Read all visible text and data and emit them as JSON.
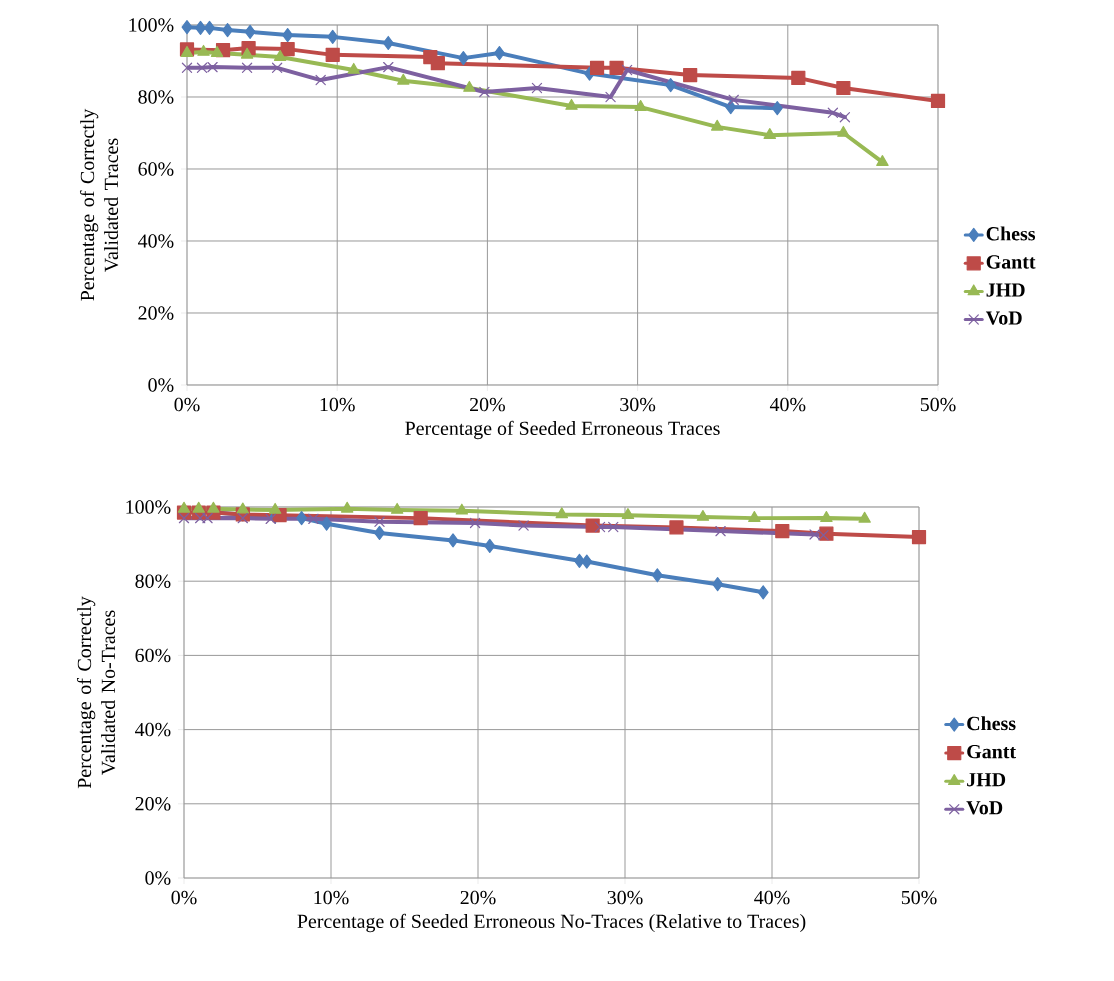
{
  "chart_data": [
    {
      "type": "line",
      "xlabel": "Percentage of Seeded Erroneous Traces",
      "ylabel": "Percentage of Correctly Validated Traces",
      "xlim": [
        0,
        50
      ],
      "ylim": [
        0,
        100
      ],
      "xticks": [
        {
          "value": 0,
          "label": "0%"
        },
        {
          "value": 10,
          "label": "10%"
        },
        {
          "value": 20,
          "label": "20%"
        },
        {
          "value": 30,
          "label": "30%"
        },
        {
          "value": 40,
          "label": "40%"
        },
        {
          "value": 50,
          "label": "50%"
        }
      ],
      "yticks": [
        {
          "value": 0,
          "label": "0%"
        },
        {
          "value": 20,
          "label": "20%"
        },
        {
          "value": 40,
          "label": "40%"
        },
        {
          "value": 60,
          "label": "60%"
        },
        {
          "value": 80,
          "label": "80%"
        },
        {
          "value": 100,
          "label": "100%"
        }
      ],
      "grid": true,
      "legend": "right",
      "series": [
        {
          "name": "Chess",
          "color": "#4a7ebb",
          "marker": "diamond",
          "x": [
            0,
            0.9,
            1.5,
            2.7,
            4.2,
            6.7,
            9.7,
            13.4,
            18.4,
            20.8,
            26.8,
            32.2,
            36.2,
            39.3
          ],
          "values": [
            99.4,
            99.2,
            99.2,
            98.6,
            98.1,
            97.2,
            96.7,
            95.0,
            90.8,
            92.2,
            86.5,
            83.3,
            77.2,
            76.9
          ]
        },
        {
          "name": "Gantt",
          "color": "#be4b48",
          "marker": "square",
          "x": [
            0,
            2.4,
            4.1,
            6.7,
            9.7,
            16.2,
            16.7,
            27.3,
            28.6,
            33.5,
            40.7,
            43.7,
            50
          ],
          "values": [
            93.2,
            93.0,
            93.6,
            93.3,
            91.7,
            91.1,
            89.4,
            88.1,
            88.1,
            86.1,
            85.3,
            82.5,
            78.9
          ]
        },
        {
          "name": "JHD",
          "color": "#98b954",
          "marker": "triangle",
          "x": [
            0,
            1.1,
            2.0,
            4.0,
            6.2,
            11.1,
            14.4,
            18.8,
            25.6,
            30.2,
            35.3,
            38.8,
            43.7,
            46.3
          ],
          "values": [
            92.2,
            92.5,
            92.2,
            91.7,
            91.1,
            87.5,
            84.5,
            82.5,
            77.5,
            77.2,
            71.7,
            69.4,
            70.0,
            61.9
          ]
        },
        {
          "name": "VoD",
          "color": "#7d60a0",
          "marker": "cross",
          "x": [
            0,
            1.0,
            1.7,
            4.0,
            6.0,
            8.9,
            13.4,
            19.8,
            23.3,
            28.2,
            29.3,
            36.4,
            43.0,
            43.8
          ],
          "values": [
            88.1,
            88.1,
            88.3,
            88.1,
            88.1,
            84.7,
            88.3,
            81.4,
            82.5,
            80.0,
            87.5,
            79.2,
            75.6,
            74.4
          ]
        }
      ]
    },
    {
      "type": "line",
      "xlabel": "Percentage of Seeded Erroneous No-Traces (Relative to Traces)",
      "ylabel": "Percentage of Correctly Validated No-Traces",
      "xlim": [
        0,
        50
      ],
      "ylim": [
        0,
        100
      ],
      "xticks": [
        {
          "value": 0,
          "label": "0%"
        },
        {
          "value": 10,
          "label": "10%"
        },
        {
          "value": 20,
          "label": "20%"
        },
        {
          "value": 30,
          "label": "30%"
        },
        {
          "value": 40,
          "label": "40%"
        },
        {
          "value": 50,
          "label": "50%"
        }
      ],
      "yticks": [
        {
          "value": 0,
          "label": "0%"
        },
        {
          "value": 20,
          "label": "20%"
        },
        {
          "value": 40,
          "label": "40%"
        },
        {
          "value": 60,
          "label": "60%"
        },
        {
          "value": 80,
          "label": "80%"
        },
        {
          "value": 100,
          "label": "100%"
        }
      ],
      "grid": true,
      "legend": "right",
      "series": [
        {
          "name": "Chess",
          "color": "#4a7ebb",
          "marker": "diamond",
          "x": [
            2.0,
            4.0,
            6.2,
            8.0,
            9.7,
            13.3,
            18.3,
            20.8,
            26.9,
            27.4,
            32.2,
            36.3,
            39.4
          ],
          "values": [
            98.5,
            98.0,
            97.5,
            97.0,
            95.5,
            93.0,
            91.0,
            89.5,
            85.5,
            85.3,
            81.6,
            79.2,
            77.0
          ]
        },
        {
          "name": "Gantt",
          "color": "#be4b48",
          "marker": "square",
          "x": [
            0,
            1.0,
            2.0,
            4.0,
            6.5,
            16.1,
            27.8,
            33.5,
            40.7,
            43.7,
            50
          ],
          "values": [
            98.5,
            98.5,
            98.5,
            98.0,
            97.8,
            97.0,
            95.0,
            94.5,
            93.5,
            92.8,
            91.9
          ]
        },
        {
          "name": "JHD",
          "color": "#98b954",
          "marker": "triangle",
          "x": [
            0,
            1.0,
            2.0,
            4.0,
            6.2,
            11.1,
            14.5,
            18.9,
            25.7,
            30.2,
            35.3,
            38.8,
            43.7,
            46.3
          ],
          "values": [
            99.5,
            99.5,
            99.5,
            99.3,
            99.2,
            99.5,
            99.2,
            99.0,
            98.0,
            97.8,
            97.3,
            97.0,
            97.0,
            96.8
          ]
        },
        {
          "name": "VoD",
          "color": "#7d60a0",
          "marker": "cross",
          "x": [
            0,
            1.1,
            1.6,
            4.0,
            5.9,
            8.8,
            13.3,
            19.8,
            23.1,
            28.3,
            29.2,
            36.5,
            42.9,
            43.5
          ],
          "values": [
            97.0,
            97.0,
            97.0,
            97.0,
            96.8,
            96.8,
            96.0,
            95.7,
            95.0,
            94.6,
            94.6,
            93.5,
            92.6,
            92.4
          ]
        }
      ]
    }
  ]
}
